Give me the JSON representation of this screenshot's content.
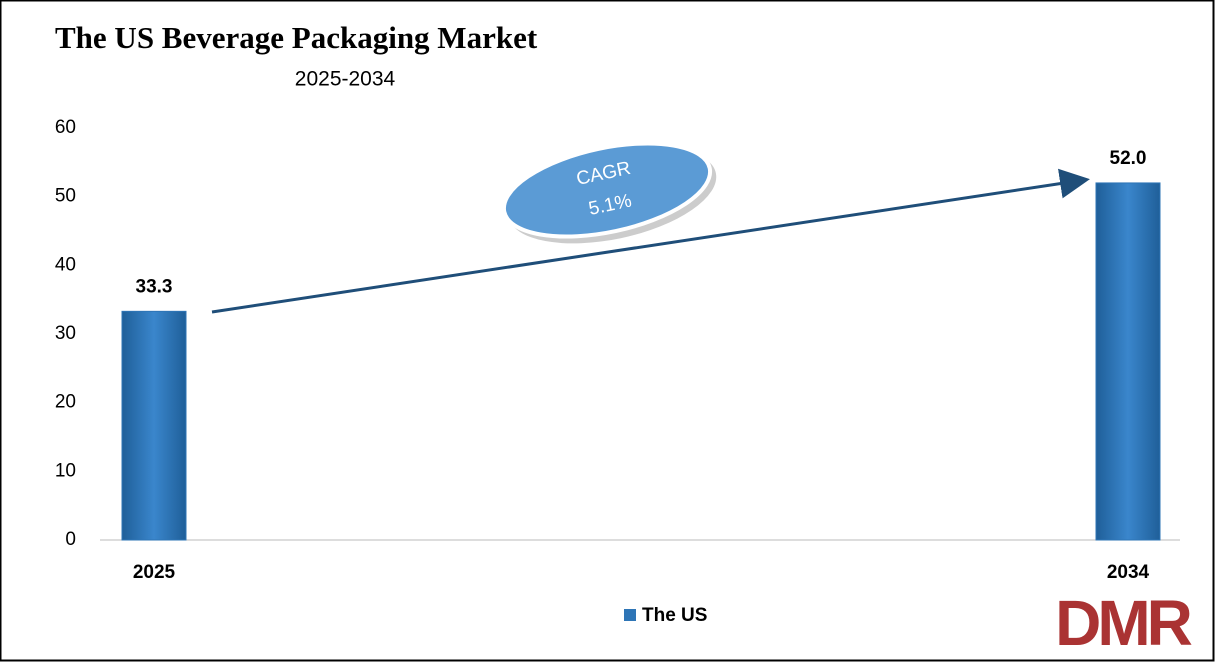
{
  "chart_data": {
    "type": "bar",
    "title": "The US Beverage Packaging Market",
    "subtitle": "2025-2034",
    "categories": [
      "2025",
      "2034"
    ],
    "series": [
      {
        "name": "The US",
        "color": "#2e75b6",
        "values": [
          33.3,
          52.0
        ],
        "value_labels": [
          "33.3",
          "52.0"
        ]
      }
    ],
    "ylim": [
      0,
      60
    ],
    "yticks": [
      0,
      10,
      20,
      30,
      40,
      50,
      60
    ],
    "grid": false,
    "legend": "bottom",
    "annotation": {
      "label": "CAGR",
      "value": "5.1%"
    },
    "logo": "DMR"
  }
}
